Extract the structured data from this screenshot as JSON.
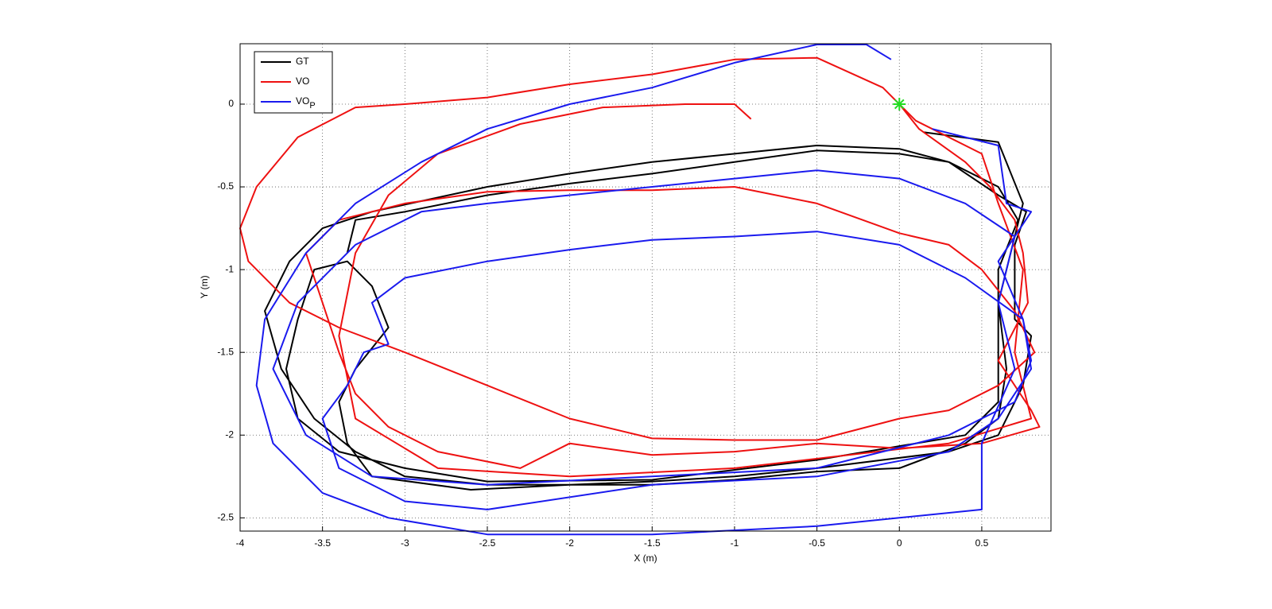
{
  "chart_data": {
    "type": "line",
    "xlabel": "X (m)",
    "ylabel": "Y (m)",
    "xlim": [
      -4,
      0.92
    ],
    "ylim": [
      -2.58,
      0.365
    ],
    "xticks": [
      -4,
      -3.5,
      -3,
      -2.5,
      -2,
      -1.5,
      -1,
      -0.5,
      0,
      0.5
    ],
    "yticks": [
      -2.5,
      -2,
      -1.5,
      -1,
      -0.5,
      0
    ],
    "grid": true,
    "legend": "upper left",
    "markers": [
      {
        "x": 0,
        "y": 0,
        "color": "#22dd22",
        "symbol": "*"
      }
    ],
    "series": [
      {
        "name": "GT",
        "color": "#000000",
        "x": [
          0.15,
          0.6,
          0.75,
          0.7,
          0.6,
          0.65,
          0.6,
          0.4,
          0,
          -0.5,
          -1,
          -1.5,
          -2,
          -2.5,
          -3,
          -3.3,
          -3.55,
          -3.75,
          -3.85,
          -3.7,
          -3.5,
          -3.2,
          -2.5,
          -2,
          -1.5,
          -1,
          -0.5,
          0,
          0.3,
          0.6,
          0.77,
          0.7,
          0.7,
          0.8,
          0.75,
          0.6,
          0.3,
          -0.5,
          -1,
          -1.5,
          -2,
          -2.6,
          -3.2,
          -3.35,
          -3.4,
          -3.3,
          -3.1,
          -3.2,
          -3.35,
          -3.55,
          -3.65,
          -3.72,
          -3.65,
          -3.4,
          -3,
          -2.5,
          -1.5,
          -0.5,
          0.4,
          0.6,
          0.6,
          0.6,
          0.72,
          0.6,
          0.3,
          0,
          -0.5,
          -1,
          -1.5,
          -2,
          -2.5,
          -3,
          -3.3,
          -3.35
        ],
        "values": [
          -0.17,
          -0.23,
          -0.6,
          -0.8,
          -1.2,
          -1.6,
          -1.9,
          -2.05,
          -2.2,
          -2.22,
          -2.27,
          -2.3,
          -2.3,
          -2.3,
          -2.25,
          -2.1,
          -1.9,
          -1.6,
          -1.25,
          -0.95,
          -0.75,
          -0.65,
          -0.5,
          -0.42,
          -0.35,
          -0.3,
          -0.25,
          -0.27,
          -0.35,
          -0.55,
          -0.65,
          -0.85,
          -1.3,
          -1.4,
          -1.7,
          -2,
          -2.1,
          -2.2,
          -2.25,
          -2.28,
          -2.3,
          -2.33,
          -2.25,
          -2.05,
          -1.8,
          -1.6,
          -1.35,
          -1.1,
          -0.95,
          -1,
          -1.3,
          -1.6,
          -1.9,
          -2.1,
          -2.2,
          -2.28,
          -2.27,
          -2.15,
          -2,
          -1.8,
          -1.4,
          -1,
          -0.7,
          -0.5,
          -0.35,
          -0.3,
          -0.28,
          -0.35,
          -0.42,
          -0.48,
          -0.55,
          -0.65,
          -0.7,
          -0.9
        ]
      },
      {
        "name": "VO",
        "color": "#ee1111",
        "x": [
          0,
          0.12,
          0.4,
          0.55,
          0.7,
          0.75,
          0.78,
          0.6,
          0.8,
          0.85,
          0.5,
          0,
          -0.5,
          -1,
          -1.5,
          -2,
          -2.3,
          -2.8,
          -3.1,
          -3.3,
          -3.4,
          -3.5,
          -3.6,
          -3.4,
          -3,
          -2.5,
          -2,
          -1.5,
          -1,
          -0.5,
          0,
          0.3,
          0.5,
          0.7,
          0.82,
          0.6,
          0.3,
          0,
          -0.5,
          -1,
          -1.5,
          -2,
          -2.5,
          -3,
          -3.4,
          -3.7,
          -3.95,
          -4,
          -3.9,
          -3.65,
          -3.3,
          -3,
          -2.5,
          -2,
          -1.5,
          -1,
          -0.5,
          -0.1,
          0.1,
          0.5,
          0.6,
          0.75,
          0.7,
          0.8,
          0.3,
          -1,
          -2,
          -2.8,
          -3.3,
          -3.4,
          -3.3,
          -3.1,
          -2.8,
          -2.3,
          -1.8,
          -1.3,
          -1,
          -0.9
        ],
        "values": [
          0,
          -0.15,
          -0.35,
          -0.5,
          -0.7,
          -0.9,
          -1.2,
          -1.55,
          -1.85,
          -1.95,
          -2.05,
          -2.08,
          -2.05,
          -2.1,
          -2.12,
          -2.05,
          -2.2,
          -2.1,
          -1.95,
          -1.75,
          -1.5,
          -1.2,
          -0.9,
          -0.7,
          -0.6,
          -0.53,
          -0.52,
          -0.52,
          -0.5,
          -0.6,
          -0.78,
          -0.85,
          -1,
          -1.25,
          -1.5,
          -1.7,
          -1.85,
          -1.9,
          -2.03,
          -2.03,
          -2.02,
          -1.9,
          -1.7,
          -1.5,
          -1.35,
          -1.2,
          -0.95,
          -0.75,
          -0.5,
          -0.2,
          -0.02,
          0,
          0.04,
          0.12,
          0.18,
          0.27,
          0.28,
          0.1,
          -0.1,
          -0.3,
          -0.6,
          -1,
          -1.5,
          -1.9,
          -2.05,
          -2.2,
          -2.25,
          -2.2,
          -1.9,
          -1.4,
          -0.9,
          -0.55,
          -0.3,
          -0.12,
          -0.02,
          0,
          0,
          -0.09
        ]
      },
      {
        "name": "VO_P",
        "color": "#1a1aee",
        "x": [
          0.2,
          0.6,
          0.65,
          0.8,
          0.6,
          0.75,
          0.8,
          0.6,
          0.3,
          -0.5,
          -1.5,
          -2.5,
          -3,
          -3.4,
          -3.5,
          -3.35,
          -3.25,
          -3.1,
          -3.2,
          -3,
          -2.5,
          -2,
          -1.5,
          -1,
          -0.5,
          0,
          0.4,
          0.75,
          0.8,
          0.7,
          0.3,
          -0.5,
          -1.5,
          -2.5,
          -3.2,
          -3.6,
          -3.8,
          -3.65,
          -3.3,
          -2.9,
          -2.5,
          -2,
          -1.5,
          -1,
          -0.5,
          0,
          0.4,
          0.7,
          0.6,
          0.7,
          0.5,
          0.5,
          0,
          -0.5,
          -1.5,
          -2.5,
          -3.1,
          -3.5,
          -3.8,
          -3.9,
          -3.85,
          -3.6,
          -3.3,
          -2.9,
          -2.5,
          -2,
          -1.5,
          -1,
          -0.5,
          -0.2,
          -0.05
        ],
        "values": [
          -0.15,
          -0.25,
          -0.6,
          -0.65,
          -0.95,
          -1.3,
          -1.6,
          -1.9,
          -2.1,
          -2.25,
          -2.3,
          -2.45,
          -2.4,
          -2.2,
          -1.9,
          -1.7,
          -1.5,
          -1.45,
          -1.2,
          -1.05,
          -0.95,
          -0.88,
          -0.82,
          -0.8,
          -0.77,
          -0.85,
          -1.05,
          -1.3,
          -1.55,
          -1.8,
          -2,
          -2.2,
          -2.25,
          -2.3,
          -2.25,
          -2,
          -1.6,
          -1.2,
          -0.85,
          -0.65,
          -0.6,
          -0.55,
          -0.5,
          -0.45,
          -0.4,
          -0.45,
          -0.6,
          -0.8,
          -1.2,
          -1.6,
          -2.05,
          -2.45,
          -2.5,
          -2.55,
          -2.6,
          -2.6,
          -2.5,
          -2.35,
          -2.05,
          -1.7,
          -1.3,
          -0.9,
          -0.6,
          -0.35,
          -0.15,
          0,
          0.1,
          0.25,
          0.36,
          0.36,
          0.27
        ]
      }
    ]
  }
}
